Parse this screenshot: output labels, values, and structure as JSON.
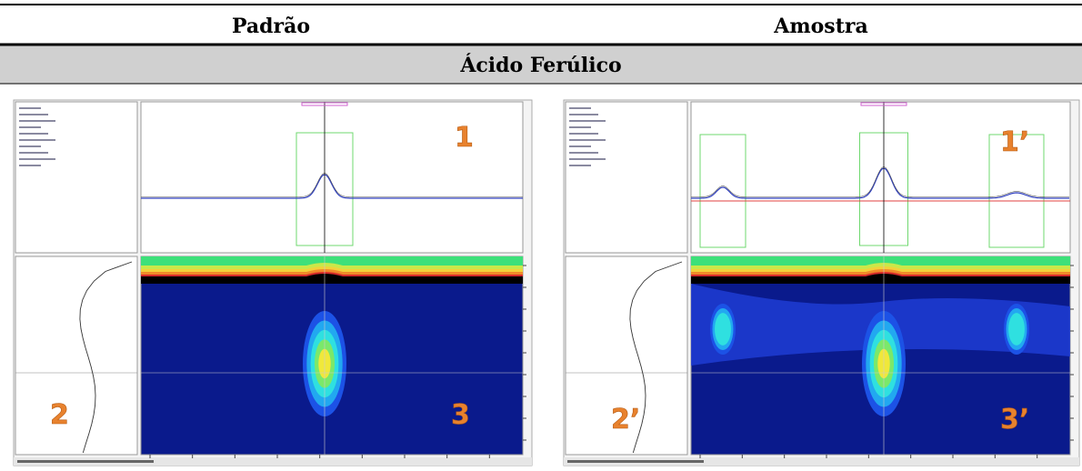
{
  "header": {
    "left": "Padrão",
    "right": "Amostra"
  },
  "compound": "Ácido Ferúlico",
  "panels": [
    {
      "labels": [
        "1",
        "2",
        "3"
      ]
    },
    {
      "labels": [
        "1’",
        "2’",
        "3’"
      ]
    }
  ]
}
